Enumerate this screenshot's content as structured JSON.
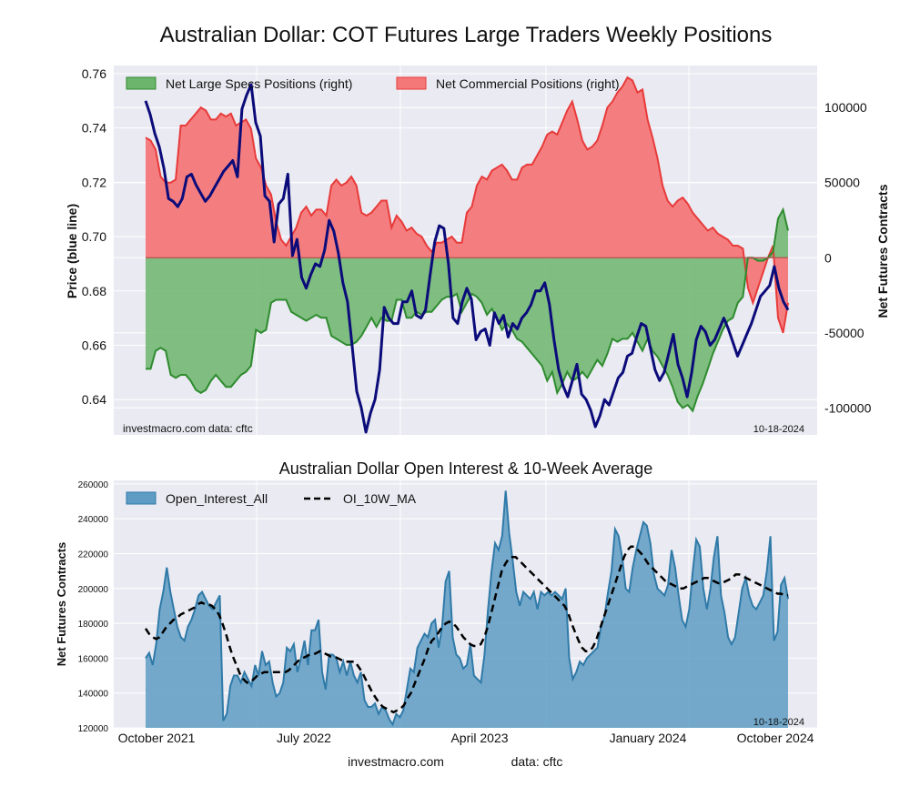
{
  "page": {
    "title": "Australian Dollar: COT Futures Large Traders Weekly Positions",
    "footer_site": "investmac ro.com",
    "footer_source": "data: cftc"
  },
  "chart_data": [
    {
      "type": "area",
      "title": "",
      "ylabel_left": "Price (blue line)",
      "ylabel_right": "Net Futures Contracts",
      "ylim_left": [
        0.627,
        0.763
      ],
      "ylim_right": [
        -118000,
        128000
      ],
      "yticks_left": [
        "0.64",
        "0.66",
        "0.68",
        "0.70",
        "0.72",
        "0.74",
        "0.76"
      ],
      "ytick_values_left": [
        0.64,
        0.66,
        0.68,
        0.7,
        0.72,
        0.74,
        0.76
      ],
      "yticks_right": [
        "100000",
        "50000",
        "0",
        "-50000",
        "-100000"
      ],
      "ytick_values_right": [
        100000,
        50000,
        0,
        -50000,
        -100000
      ],
      "legend_position": "top-left",
      "grid": true,
      "watermark": "investmacro.com   data: cftc",
      "date_label": "10-18-2024",
      "colors": {
        "specs": "#2e8b2e",
        "specs_fill": "#6cb56c",
        "commercial": "#e83a3a",
        "commercial_fill": "#f47878",
        "price": "#0b0b7a"
      },
      "series": [
        {
          "name": "Net Large Specs Positions (right)",
          "axis": "right",
          "values": [
            -74000,
            -74000,
            -62000,
            -60000,
            -62000,
            -78000,
            -80000,
            -78000,
            -78000,
            -82000,
            -88000,
            -90000,
            -88000,
            -82000,
            -78000,
            -82000,
            -86000,
            -86000,
            -82000,
            -78000,
            -76000,
            -72000,
            -48000,
            -50000,
            -48000,
            -30000,
            -28000,
            -28000,
            -28000,
            -36000,
            -38000,
            -40000,
            -42000,
            -40000,
            -38000,
            -40000,
            -40000,
            -52000,
            -54000,
            -56000,
            -58000,
            -58000,
            -56000,
            -52000,
            -46000,
            -40000,
            -46000,
            -40000,
            -42000,
            -42000,
            -28000,
            -28000,
            -40000,
            -40000,
            -36000,
            -38000,
            -36000,
            -36000,
            -32000,
            -28000,
            -26000,
            -26000,
            -24000,
            -36000,
            -30000,
            -24000,
            -26000,
            -30000,
            -38000,
            -34000,
            -40000,
            -48000,
            -44000,
            -48000,
            -54000,
            -56000,
            -60000,
            -64000,
            -68000,
            -72000,
            -82000,
            -76000,
            -90000,
            -84000,
            -76000,
            -82000,
            -80000,
            -76000,
            -80000,
            -74000,
            -68000,
            -72000,
            -64000,
            -54000,
            -56000,
            -54000,
            -54000,
            -50000,
            -56000,
            -62000,
            -54000,
            -62000,
            -66000,
            -72000,
            -78000,
            -86000,
            -96000,
            -100000,
            -98000,
            -102000,
            -92000,
            -84000,
            -74000,
            -64000,
            -56000,
            -48000,
            -42000,
            -40000,
            -30000,
            -26000,
            0,
            0,
            -2000,
            -2000,
            0,
            4000,
            26000,
            32000,
            18000
          ]
        },
        {
          "name": "Net Commercial Positions (right)",
          "axis": "right",
          "values": [
            80000,
            78000,
            72000,
            54000,
            50000,
            50000,
            52000,
            88000,
            88000,
            92000,
            96000,
            100000,
            98000,
            92000,
            92000,
            96000,
            94000,
            96000,
            88000,
            90000,
            92000,
            86000,
            66000,
            60000,
            48000,
            42000,
            24000,
            12000,
            8000,
            14000,
            20000,
            30000,
            34000,
            28000,
            32000,
            32000,
            28000,
            48000,
            52000,
            48000,
            50000,
            54000,
            48000,
            30000,
            28000,
            30000,
            34000,
            38000,
            38000,
            20000,
            28000,
            24000,
            18000,
            20000,
            16000,
            14000,
            8000,
            4000,
            10000,
            10000,
            12000,
            14000,
            10000,
            10000,
            30000,
            34000,
            48000,
            54000,
            52000,
            58000,
            60000,
            62000,
            58000,
            52000,
            52000,
            60000,
            62000,
            62000,
            68000,
            74000,
            82000,
            84000,
            82000,
            90000,
            98000,
            104000,
            92000,
            78000,
            72000,
            74000,
            78000,
            88000,
            100000,
            104000,
            110000,
            114000,
            120000,
            118000,
            110000,
            112000,
            92000,
            80000,
            66000,
            48000,
            38000,
            34000,
            38000,
            40000,
            36000,
            30000,
            26000,
            22000,
            18000,
            20000,
            16000,
            14000,
            12000,
            8000,
            8000,
            6000,
            -20000,
            -30000,
            -20000,
            -10000,
            0,
            8000,
            -40000,
            -50000,
            -30000
          ]
        },
        {
          "name": "Price",
          "axis": "left",
          "values": [
            0.75,
            0.745,
            0.738,
            0.733,
            0.725,
            0.714,
            0.713,
            0.711,
            0.714,
            0.722,
            0.723,
            0.719,
            0.716,
            0.713,
            0.715,
            0.718,
            0.721,
            0.724,
            0.726,
            0.728,
            0.722,
            0.747,
            0.752,
            0.756,
            0.742,
            0.737,
            0.715,
            0.713,
            0.698,
            0.712,
            0.714,
            0.723,
            0.693,
            0.699,
            0.685,
            0.681,
            0.686,
            0.69,
            0.689,
            0.695,
            0.706,
            0.702,
            0.694,
            0.683,
            0.676,
            0.66,
            0.643,
            0.637,
            0.628,
            0.635,
            0.64,
            0.651,
            0.674,
            0.67,
            0.668,
            0.668,
            0.676,
            0.676,
            0.68,
            0.671,
            0.67,
            0.673,
            0.686,
            0.698,
            0.704,
            0.703,
            0.69,
            0.67,
            0.668,
            0.676,
            0.681,
            0.677,
            0.662,
            0.665,
            0.666,
            0.66,
            0.672,
            0.668,
            0.671,
            0.663,
            0.668,
            0.666,
            0.67,
            0.672,
            0.675,
            0.68,
            0.68,
            0.683,
            0.675,
            0.662,
            0.651,
            0.645,
            0.641,
            0.647,
            0.653,
            0.642,
            0.64,
            0.636,
            0.63,
            0.634,
            0.64,
            0.638,
            0.643,
            0.648,
            0.65,
            0.656,
            0.657,
            0.663,
            0.668,
            0.667,
            0.659,
            0.651,
            0.647,
            0.65,
            0.657,
            0.664,
            0.653,
            0.648,
            0.641,
            0.65,
            0.662,
            0.667,
            0.665,
            0.66,
            0.662,
            0.666,
            0.67,
            0.666,
            0.661,
            0.656,
            0.66,
            0.664,
            0.668,
            0.673,
            0.678,
            0.68,
            0.682,
            0.689,
            0.681,
            0.676,
            0.673
          ]
        }
      ]
    },
    {
      "type": "area",
      "title": "Australian Dollar Open Interest & 10-Week Average",
      "xlabel": "",
      "ylabel": "Net Futures Contracts",
      "ylim": [
        120000,
        262000
      ],
      "yticks": [
        "120000",
        "140000",
        "160000",
        "180000",
        "200000",
        "220000",
        "240000",
        "260000"
      ],
      "ytick_values": [
        120000,
        140000,
        160000,
        180000,
        200000,
        220000,
        240000,
        260000
      ],
      "xticks": [
        "October 2021",
        "July 2022",
        "April 2023",
        "January 2024",
        "October 2024"
      ],
      "legend_position": "top-left",
      "grid": true,
      "date_label": "10-18-2024",
      "colors": {
        "oi_fill": "#5e9cc4",
        "oi_line": "#2f7aa8",
        "ma": "#000000"
      },
      "series": [
        {
          "name": "Open_Interest_All",
          "values": [
            160000,
            163000,
            156000,
            168000,
            188000,
            198000,
            212000,
            198000,
            188000,
            178000,
            172000,
            170000,
            178000,
            182000,
            188000,
            196000,
            198000,
            194000,
            190000,
            188000,
            192000,
            196000,
            124000,
            128000,
            144000,
            150000,
            150000,
            146000,
            152000,
            148000,
            144000,
            156000,
            150000,
            164000,
            156000,
            158000,
            146000,
            138000,
            140000,
            146000,
            166000,
            164000,
            168000,
            152000,
            160000,
            170000,
            156000,
            176000,
            176000,
            182000,
            152000,
            142000,
            162000,
            162000,
            160000,
            152000,
            158000,
            150000,
            158000,
            150000,
            146000,
            152000,
            136000,
            132000,
            132000,
            134000,
            128000,
            132000,
            130000,
            125000,
            122000,
            128000,
            126000,
            130000,
            142000,
            154000,
            152000,
            166000,
            170000,
            174000,
            172000,
            180000,
            182000,
            166000,
            178000,
            204000,
            210000,
            172000,
            162000,
            160000,
            154000,
            156000,
            168000,
            150000,
            148000,
            146000,
            162000,
            188000,
            210000,
            226000,
            222000,
            230000,
            256000,
            232000,
            216000,
            198000,
            190000,
            198000,
            196000,
            194000,
            198000,
            188000,
            198000,
            196000,
            198000,
            196000,
            198000,
            196000,
            194000,
            200000,
            160000,
            148000,
            152000,
            158000,
            156000,
            160000,
            162000,
            164000,
            166000,
            178000,
            184000,
            198000,
            210000,
            234000,
            230000,
            218000,
            200000,
            198000,
            212000,
            222000,
            230000,
            238000,
            236000,
            226000,
            208000,
            200000,
            198000,
            196000,
            202000,
            222000,
            212000,
            196000,
            182000,
            178000,
            188000,
            210000,
            228000,
            224000,
            200000,
            188000,
            200000,
            218000,
            230000,
            196000,
            186000,
            172000,
            168000,
            172000,
            186000,
            200000,
            206000,
            196000,
            190000,
            188000,
            192000,
            196000,
            210000,
            230000,
            170000,
            175000,
            202000,
            206000,
            194000
          ],
          "values_note": ""
        },
        {
          "name": "OI_10W_MA",
          "values": [
            177000,
            174000,
            172000,
            171000,
            172000,
            175000,
            178000,
            180000,
            182000,
            183000,
            185000,
            186000,
            187000,
            188000,
            189000,
            191000,
            192000,
            191000,
            191000,
            190000,
            188000,
            185000,
            180000,
            174000,
            167000,
            161000,
            156000,
            151000,
            148000,
            146000,
            146000,
            148000,
            150000,
            151000,
            152000,
            152000,
            152000,
            152000,
            152000,
            152000,
            152000,
            153000,
            155000,
            157000,
            159000,
            160000,
            161000,
            162000,
            162000,
            163000,
            164000,
            163000,
            162000,
            161000,
            161000,
            160000,
            159000,
            158000,
            158000,
            158000,
            158000,
            155000,
            152000,
            148000,
            144000,
            140000,
            137000,
            134000,
            132000,
            131000,
            130000,
            129000,
            130000,
            131000,
            133000,
            137000,
            140000,
            145000,
            150000,
            155000,
            160000,
            166000,
            170000,
            172000,
            175000,
            178000,
            180000,
            181000,
            180000,
            178000,
            175000,
            172000,
            170000,
            168000,
            167000,
            167000,
            168000,
            172000,
            178000,
            186000,
            194000,
            202000,
            210000,
            214000,
            217000,
            218000,
            218000,
            216000,
            214000,
            212000,
            210000,
            208000,
            206000,
            204000,
            202000,
            200000,
            198000,
            196000,
            194000,
            192000,
            190000,
            186000,
            180000,
            175000,
            170000,
            166000,
            164000,
            164000,
            166000,
            170000,
            176000,
            182000,
            188000,
            194000,
            200000,
            206000,
            212000,
            218000,
            222000,
            224000,
            224000,
            222000,
            220000,
            217000,
            214000,
            212000,
            210000,
            208000,
            206000,
            204000,
            203000,
            202000,
            201000,
            200000,
            200000,
            201000,
            202000,
            203000,
            204000,
            205000,
            206000,
            206000,
            205000,
            204000,
            203000,
            203000,
            204000,
            205000,
            206000,
            208000,
            208000,
            207000,
            206000,
            205000,
            204000,
            203000,
            202000,
            201000,
            200000,
            199000,
            198000,
            197000,
            197000,
            196000,
            196000
          ]
        }
      ]
    }
  ]
}
